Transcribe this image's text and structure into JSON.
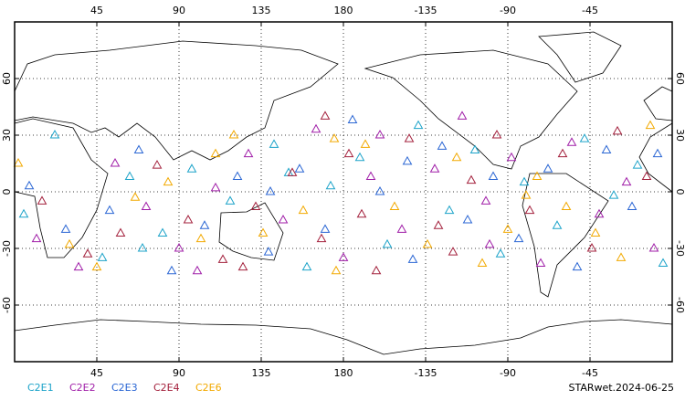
{
  "chart_data": {
    "type": "scatter",
    "marker": "triangle",
    "grid": true,
    "xlim": [
      0,
      360
    ],
    "ylim": [
      -90,
      90
    ],
    "xticks": [
      45,
      90,
      135,
      180,
      {
        "value": 225,
        "label": "-135"
      },
      {
        "value": 270,
        "label": "-90"
      },
      {
        "value": 315,
        "label": "-45"
      }
    ],
    "yticks": [
      60,
      30,
      0,
      -30,
      -60
    ],
    "annotation": "STARwet.2024-06-25",
    "series": [
      {
        "name": "C2E1",
        "color": "#1ca3c9",
        "x": [
          5,
          22,
          48,
          63,
          81,
          97,
          118,
          142,
          160,
          173,
          189,
          204,
          221,
          238,
          252,
          266,
          279,
          297,
          312,
          328,
          341,
          355,
          70,
          150
        ],
        "values": [
          -12,
          30,
          -35,
          8,
          -22,
          12,
          -5,
          25,
          -40,
          3,
          18,
          -28,
          35,
          -10,
          22,
          -33,
          5,
          -18,
          28,
          -2,
          14,
          -38,
          -30,
          10
        ]
      },
      {
        "name": "C2E2",
        "color": "#a01ea8",
        "x": [
          12,
          35,
          55,
          72,
          90,
          110,
          128,
          147,
          165,
          180,
          195,
          212,
          230,
          245,
          258,
          272,
          288,
          305,
          320,
          335,
          350,
          100,
          200,
          260
        ],
        "values": [
          -25,
          -40,
          15,
          -8,
          -30,
          2,
          20,
          -15,
          33,
          -35,
          8,
          -20,
          12,
          40,
          -5,
          18,
          -38,
          26,
          -12,
          5,
          -30,
          -42,
          30,
          -28
        ]
      },
      {
        "name": "C2E3",
        "color": "#2a66d4",
        "x": [
          8,
          28,
          52,
          68,
          86,
          104,
          122,
          139,
          156,
          170,
          185,
          200,
          218,
          234,
          248,
          262,
          276,
          292,
          308,
          324,
          338,
          352,
          140,
          215
        ],
        "values": [
          3,
          -20,
          -10,
          22,
          -42,
          -18,
          8,
          -32,
          12,
          -20,
          38,
          0,
          -36,
          24,
          -15,
          8,
          -25,
          12,
          -40,
          22,
          -8,
          20,
          0,
          16
        ]
      },
      {
        "name": "C2E4",
        "color": "#a3203c",
        "x": [
          15,
          40,
          58,
          78,
          95,
          114,
          132,
          152,
          168,
          183,
          198,
          216,
          232,
          250,
          264,
          282,
          300,
          316,
          330,
          346,
          125,
          190,
          240,
          170
        ],
        "values": [
          -5,
          -33,
          -22,
          14,
          -15,
          -36,
          -8,
          10,
          -25,
          20,
          -42,
          28,
          -18,
          6,
          30,
          -10,
          20,
          -30,
          32,
          8,
          -40,
          -12,
          -32,
          40
        ]
      },
      {
        "name": "C2E6",
        "color": "#f2a900",
        "x": [
          2,
          30,
          45,
          66,
          84,
          102,
          120,
          136,
          158,
          176,
          192,
          208,
          226,
          242,
          256,
          270,
          286,
          302,
          318,
          332,
          348,
          110,
          175,
          280
        ],
        "values": [
          15,
          -28,
          -40,
          -3,
          5,
          -25,
          30,
          -22,
          -10,
          -42,
          25,
          -8,
          -28,
          18,
          -38,
          -20,
          8,
          -8,
          -22,
          -35,
          35,
          20,
          28,
          -2
        ]
      }
    ]
  }
}
